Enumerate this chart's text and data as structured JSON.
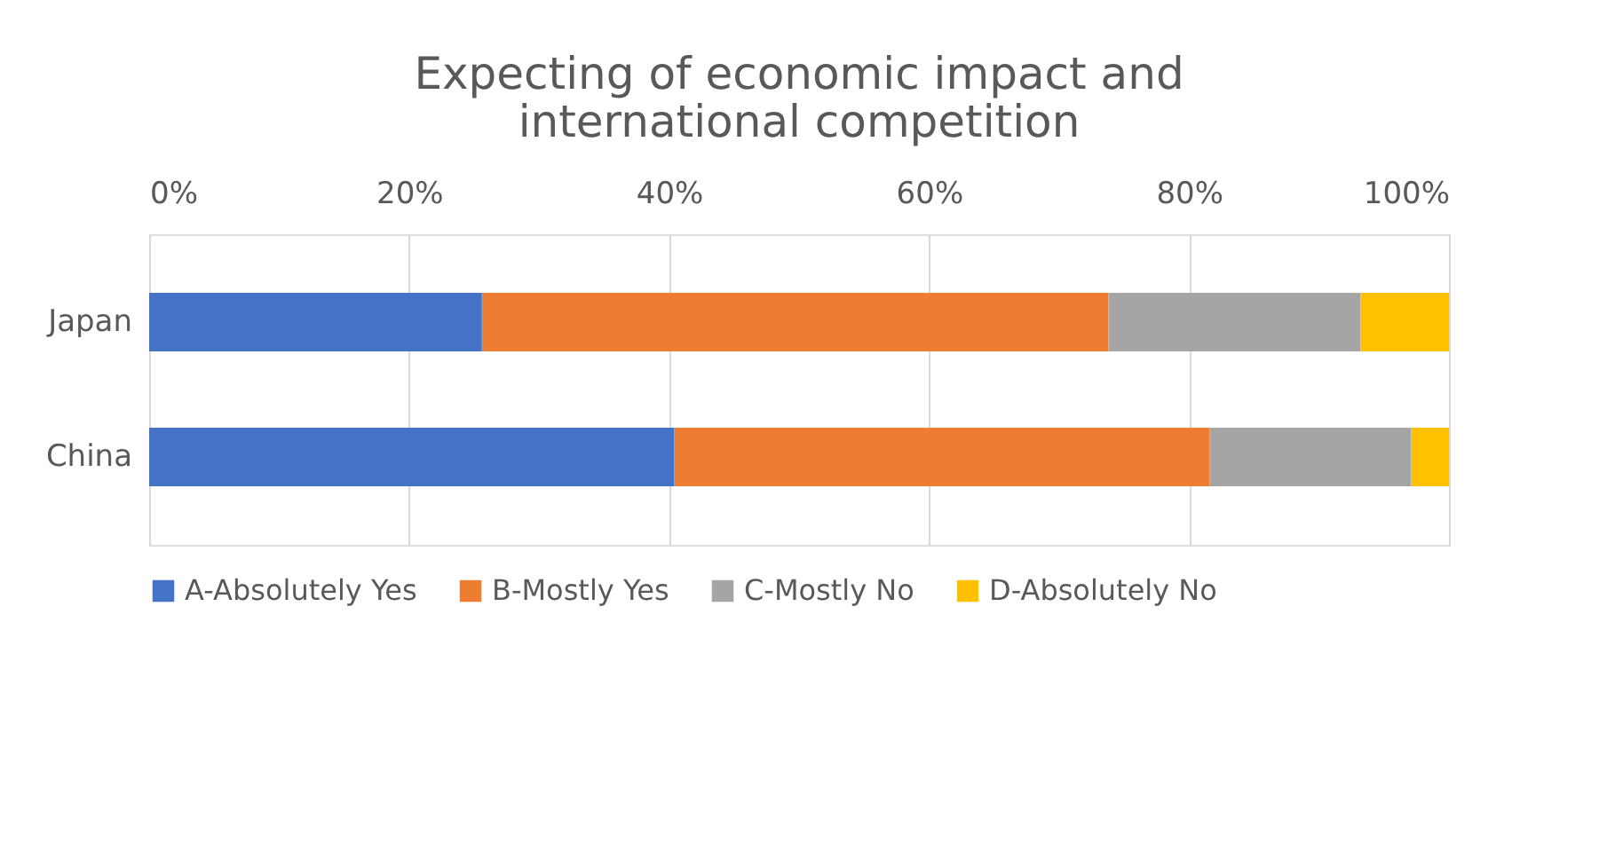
{
  "chart_data": {
    "type": "bar",
    "orientation": "horizontal",
    "stacked": true,
    "title": "Expecting of economic impact and international competition",
    "categories": [
      "Japan",
      "China"
    ],
    "series": [
      {
        "name": "A-Absolutely Yes",
        "color": "#4472c4",
        "values": [
          25.6,
          40.4
        ]
      },
      {
        "name": "B-Mostly Yes",
        "color": "#ed7d31",
        "values": [
          48.2,
          41.2
        ]
      },
      {
        "name": "C-Mostly No",
        "color": "#a5a5a5",
        "values": [
          19.4,
          15.5
        ]
      },
      {
        "name": "D-Absolutely No",
        "color": "#ffc000",
        "values": [
          6.8,
          2.9
        ]
      }
    ],
    "xlim": [
      0,
      100
    ],
    "xticks": [
      {
        "value": 0,
        "label": "0%"
      },
      {
        "value": 20,
        "label": "20%"
      },
      {
        "value": 40,
        "label": "40%"
      },
      {
        "value": 60,
        "label": "60%"
      },
      {
        "value": 80,
        "label": "80%"
      },
      {
        "value": 100,
        "label": "100%"
      }
    ],
    "grid": "x",
    "legend": "bottom"
  }
}
